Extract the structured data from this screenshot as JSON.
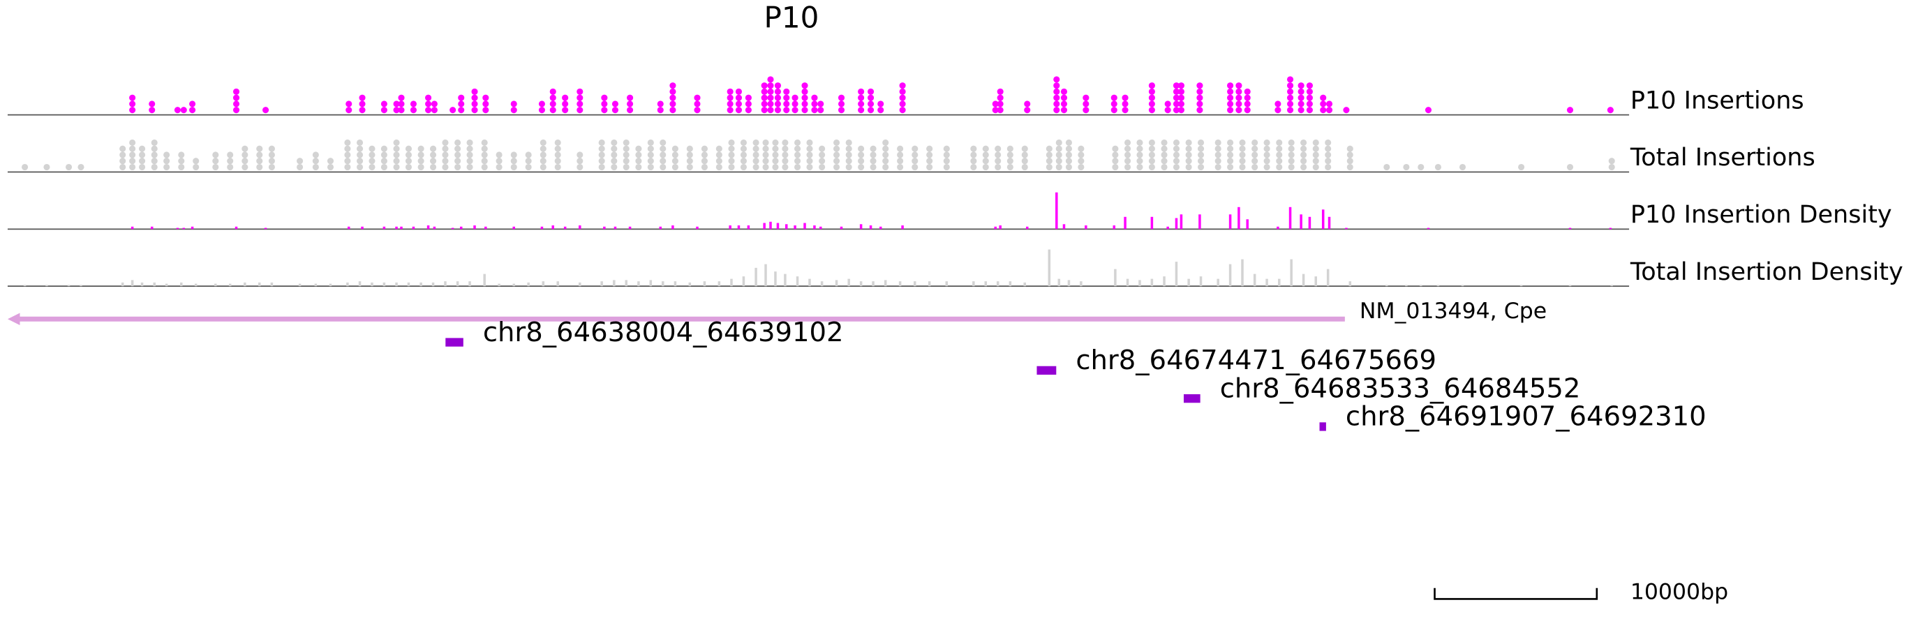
{
  "chart_data": {
    "type": "track",
    "title": "P10",
    "xlim": [
      64611000,
      64711000
    ],
    "tracks": [
      {
        "name": "P10 Insertions",
        "kind": "dots",
        "color": "#ff00ff",
        "x": [
          64618690,
          64619900,
          64621480,
          64621860,
          64622390,
          64625100,
          64626910,
          64632040,
          64632870,
          64634220,
          64634980,
          64635280,
          64636030,
          64636940,
          64637320,
          64638450,
          64638970,
          64639800,
          64640480,
          64642220,
          64643950,
          64644630,
          64645380,
          64646290,
          64647800,
          64648470,
          64649380,
          64651260,
          64652020,
          64653530,
          64655560,
          64656090,
          64656690,
          64657670,
          64658050,
          64658500,
          64659030,
          64659560,
          64660160,
          64660760,
          64661140,
          64662420,
          64663630,
          64664230,
          64664840,
          64666190,
          64671920,
          64672220,
          64673880,
          64675690,
          64676150,
          64677500,
          64679240,
          64679920,
          64681570,
          64682550,
          64683080,
          64683380,
          64684520,
          64686400,
          64686930,
          64687460,
          64689340,
          64690100,
          64690770,
          64691300,
          64692130,
          64692510,
          64693560,
          64698620,
          64707360,
          64709850
        ],
        "values": [
          3,
          2,
          1,
          1,
          2,
          4,
          1,
          2,
          3,
          2,
          2,
          3,
          2,
          3,
          2,
          1,
          3,
          4,
          3,
          2,
          2,
          4,
          3,
          4,
          3,
          2,
          3,
          2,
          5,
          3,
          4,
          4,
          3,
          5,
          6,
          5,
          4,
          3,
          5,
          3,
          2,
          3,
          4,
          4,
          2,
          5,
          2,
          4,
          2,
          6,
          4,
          3,
          3,
          3,
          5,
          2,
          5,
          5,
          5,
          5,
          5,
          4,
          2,
          6,
          5,
          5,
          3,
          2,
          1,
          1,
          1,
          1
        ]
      },
      {
        "name": "Total Insertions",
        "kind": "dots",
        "color": "#d3d3d3",
        "x": [
          64612060,
          64613410,
          64614770,
          64615520,
          64618090,
          64618690,
          64619290,
          64620050,
          64620800,
          64621710,
          64622610,
          64623820,
          64624720,
          64625630,
          64626530,
          64627290,
          64629020,
          64630000,
          64630910,
          64631960,
          64632720,
          64633470,
          64634220,
          64634980,
          64635730,
          64636490,
          64637240,
          64637990,
          64638750,
          64639500,
          64640410,
          64641310,
          64642220,
          64643120,
          64644030,
          64644930,
          64646290,
          64647640,
          64648400,
          64649150,
          64649910,
          64650660,
          64651410,
          64652170,
          64653070,
          64653980,
          64654880,
          64655640,
          64656390,
          64657150,
          64657750,
          64658350,
          64658950,
          64659710,
          64660460,
          64661220,
          64662120,
          64662880,
          64663630,
          64664380,
          64665140,
          64666040,
          64666950,
          64667850,
          64668910,
          64670570,
          64671320,
          64672070,
          64672830,
          64673730,
          64675240,
          64675840,
          64676450,
          64677200,
          64679310,
          64680070,
          64680820,
          64681570,
          64682330,
          64683080,
          64683840,
          64684590,
          64685650,
          64686400,
          64687150,
          64687910,
          64688660,
          64689420,
          64690170,
          64690920,
          64691680,
          64692430,
          64693790,
          64696050,
          64697260,
          64698160,
          64699220,
          64700730,
          64704350,
          64707360,
          64709930
        ],
        "values": [
          1,
          1,
          1,
          1,
          4,
          5,
          4,
          5,
          3,
          3,
          2,
          3,
          3,
          4,
          4,
          4,
          2,
          3,
          2,
          5,
          5,
          4,
          4,
          5,
          4,
          4,
          4,
          5,
          5,
          5,
          5,
          3,
          3,
          3,
          5,
          5,
          3,
          5,
          5,
          5,
          4,
          5,
          5,
          4,
          4,
          4,
          4,
          5,
          5,
          5,
          5,
          5,
          5,
          5,
          5,
          4,
          5,
          5,
          4,
          4,
          5,
          4,
          4,
          4,
          4,
          4,
          4,
          4,
          4,
          4,
          4,
          5,
          5,
          4,
          4,
          5,
          5,
          5,
          5,
          5,
          5,
          5,
          5,
          5,
          5,
          5,
          5,
          5,
          5,
          5,
          5,
          5,
          4,
          1,
          1,
          1,
          1,
          1,
          1,
          1,
          2
        ]
      },
      {
        "name": "P10 Insertion Density",
        "kind": "bars",
        "color": "#ff00ff",
        "x": [
          64618690,
          64619900,
          64621480,
          64621860,
          64622390,
          64625100,
          64626910,
          64632040,
          64632870,
          64634220,
          64634980,
          64635280,
          64636030,
          64636940,
          64637320,
          64638450,
          64638970,
          64639800,
          64640480,
          64642220,
          64643950,
          64644630,
          64645380,
          64646290,
          64647800,
          64648470,
          64649380,
          64651260,
          64652020,
          64653530,
          64655560,
          64656090,
          64656690,
          64657670,
          64658050,
          64658500,
          64659030,
          64659560,
          64660160,
          64660760,
          64661140,
          64662420,
          64663630,
          64664230,
          64664840,
          64666190,
          64671920,
          64672220,
          64673880,
          64675690,
          64676150,
          64677500,
          64679240,
          64679920,
          64681570,
          64682550,
          64683080,
          64683380,
          64684520,
          64686400,
          64686930,
          64687460,
          64689340,
          64690100,
          64690770,
          64691300,
          64692130,
          64692510,
          64693560,
          64698620,
          64707360,
          64709850
        ],
        "values": [
          2,
          2,
          1,
          1,
          2,
          2,
          1,
          2,
          2,
          2,
          2,
          2,
          2,
          3,
          2,
          1,
          2,
          3,
          2,
          2,
          2,
          3,
          2,
          3,
          2,
          2,
          2,
          2,
          3,
          2,
          3,
          3,
          3,
          5,
          6,
          5,
          4,
          3,
          5,
          3,
          2,
          2,
          4,
          3,
          2,
          3,
          2,
          3,
          2,
          30,
          4,
          3,
          3,
          10,
          10,
          2,
          9,
          12,
          12,
          12,
          18,
          8,
          2,
          18,
          12,
          10,
          16,
          10,
          1,
          1,
          1,
          1
        ]
      },
      {
        "name": "Total Insertion Density",
        "kind": "bars",
        "color": "#d3d3d3",
        "x": [
          64612060,
          64613410,
          64614770,
          64615520,
          64618090,
          64618690,
          64619290,
          64620050,
          64620800,
          64621710,
          64622610,
          64623820,
          64624720,
          64625630,
          64626530,
          64627290,
          64629020,
          64630000,
          64630910,
          64631960,
          64632720,
          64633470,
          64634220,
          64634980,
          64635730,
          64636490,
          64637240,
          64637990,
          64638750,
          64639500,
          64640410,
          64641310,
          64642220,
          64643120,
          64644030,
          64644930,
          64646290,
          64647640,
          64648400,
          64649150,
          64649910,
          64650660,
          64651410,
          64652170,
          64653070,
          64653980,
          64654880,
          64655640,
          64656390,
          64657150,
          64657750,
          64658350,
          64658950,
          64659710,
          64660460,
          64661220,
          64662120,
          64662880,
          64663630,
          64664380,
          64665140,
          64666040,
          64666950,
          64667850,
          64668910,
          64670570,
          64671320,
          64672070,
          64672830,
          64673730,
          64675240,
          64675840,
          64676450,
          64677200,
          64679310,
          64680070,
          64680820,
          64681570,
          64682330,
          64683080,
          64683840,
          64684590,
          64685650,
          64686400,
          64687150,
          64687910,
          64688660,
          64689420,
          64690170,
          64690920,
          64691680,
          64692430,
          64693790,
          64696050,
          64697260,
          64698160,
          64699220,
          64700730,
          64704350,
          64707360,
          64709930
        ],
        "values": [
          1,
          1,
          1,
          1,
          3,
          5,
          3,
          3,
          2,
          3,
          2,
          2,
          2,
          3,
          3,
          3,
          2,
          2,
          2,
          3,
          4,
          3,
          3,
          3,
          3,
          3,
          3,
          4,
          4,
          4,
          10,
          2,
          2,
          3,
          4,
          4,
          3,
          4,
          5,
          5,
          4,
          5,
          4,
          4,
          3,
          4,
          4,
          6,
          8,
          15,
          18,
          12,
          10,
          8,
          6,
          4,
          5,
          6,
          4,
          4,
          5,
          4,
          4,
          4,
          4,
          4,
          4,
          4,
          4,
          3,
          30,
          6,
          5,
          4,
          14,
          6,
          5,
          6,
          8,
          20,
          6,
          8,
          6,
          18,
          22,
          10,
          6,
          6,
          22,
          10,
          8,
          14,
          4,
          1,
          1,
          1,
          1,
          1,
          1,
          1,
          1
        ]
      }
    ],
    "gene": {
      "label": "NM_013494, Cpe",
      "start": 64611000,
      "end": 64693470,
      "strand": "-",
      "color": "#dda0dd"
    },
    "peaks": [
      {
        "name": "chr8_64638004_64639102",
        "start": 64638004,
        "end": 64639102
      },
      {
        "name": "chr8_64674471_64675669",
        "start": 64674471,
        "end": 64675669
      },
      {
        "name": "chr8_64683533_64684552",
        "start": 64683533,
        "end": 64684552
      },
      {
        "name": "chr8_64691907_64692310",
        "start": 64691907,
        "end": 64692310
      }
    ],
    "peak_color": "#9400d3",
    "scale_bar": {
      "length": 10000,
      "label": "10000bp"
    }
  }
}
